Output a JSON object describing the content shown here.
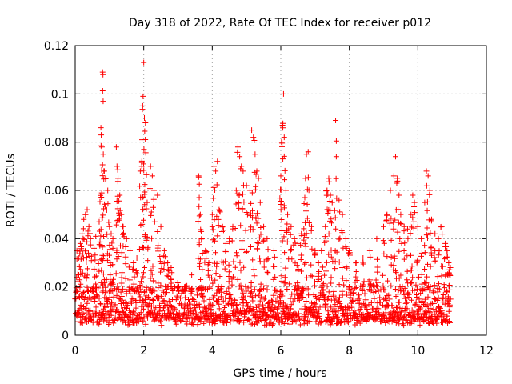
{
  "chart_data": {
    "type": "scatter",
    "title": "Day 318 of 2022, Rate Of TEC Index for receiver p012",
    "xlabel": "GPS time / hours",
    "ylabel": "ROTI / TECUs",
    "xlim": [
      0,
      12
    ],
    "ylim": [
      0,
      0.12
    ],
    "x_ticks": [
      0,
      2,
      4,
      6,
      8,
      10,
      12
    ],
    "x_tick_labels": [
      "0",
      "2",
      "4",
      "6",
      "8",
      "10",
      "12"
    ],
    "y_ticks": [
      0,
      0.02,
      0.04,
      0.06,
      0.08,
      0.1,
      0.12
    ],
    "y_tick_labels": [
      "0",
      "0.02",
      "0.04",
      "0.06",
      "0.08",
      "0.1",
      "0.12"
    ],
    "grid": true,
    "marker": "+",
    "color": "#ff0000",
    "x_range_data": [
      0,
      10.95
    ],
    "baseline_band": [
      0.004,
      0.02
    ],
    "series": [
      {
        "name": "ROTI",
        "points": [
          [
            0.05,
            0.035
          ],
          [
            0.1,
            0.032
          ],
          [
            0.15,
            0.038
          ],
          [
            0.2,
            0.042
          ],
          [
            0.25,
            0.048
          ],
          [
            0.3,
            0.05
          ],
          [
            0.35,
            0.052
          ],
          [
            0.4,
            0.045
          ],
          [
            0.45,
            0.04
          ],
          [
            0.55,
            0.036
          ],
          [
            0.6,
            0.041
          ],
          [
            0.7,
            0.047
          ],
          [
            0.75,
            0.086
          ],
          [
            0.76,
            0.083
          ],
          [
            0.78,
            0.078
          ],
          [
            0.8,
            0.109
          ],
          [
            0.81,
            0.108
          ],
          [
            0.82,
            0.075
          ],
          [
            0.85,
            0.068
          ],
          [
            0.9,
            0.065
          ],
          [
            0.95,
            0.06
          ],
          [
            1.0,
            0.045
          ],
          [
            1.05,
            0.042
          ],
          [
            1.1,
            0.04
          ],
          [
            1.2,
            0.078
          ],
          [
            1.22,
            0.07
          ],
          [
            1.25,
            0.065
          ],
          [
            1.3,
            0.058
          ],
          [
            1.35,
            0.05
          ],
          [
            1.4,
            0.045
          ],
          [
            1.5,
            0.04
          ],
          [
            1.6,
            0.035
          ],
          [
            1.7,
            0.03
          ],
          [
            1.8,
            0.032
          ],
          [
            1.9,
            0.068
          ],
          [
            1.95,
            0.081
          ],
          [
            1.97,
            0.095
          ],
          [
            1.98,
            0.099
          ],
          [
            2.0,
            0.113
          ],
          [
            2.02,
            0.09
          ],
          [
            2.05,
            0.088
          ],
          [
            2.1,
            0.055
          ],
          [
            2.2,
            0.07
          ],
          [
            2.25,
            0.066
          ],
          [
            2.3,
            0.06
          ],
          [
            2.4,
            0.058
          ],
          [
            2.5,
            0.045
          ],
          [
            2.6,
            0.035
          ],
          [
            2.7,
            0.03
          ],
          [
            2.8,
            0.028
          ],
          [
            3.0,
            0.022
          ],
          [
            3.2,
            0.02
          ],
          [
            3.4,
            0.025
          ],
          [
            3.6,
            0.066
          ],
          [
            3.62,
            0.057
          ],
          [
            3.65,
            0.05
          ],
          [
            3.7,
            0.04
          ],
          [
            3.8,
            0.035
          ],
          [
            3.9,
            0.03
          ],
          [
            4.0,
            0.05
          ],
          [
            4.05,
            0.07
          ],
          [
            4.1,
            0.068
          ],
          [
            4.15,
            0.072
          ],
          [
            4.2,
            0.052
          ],
          [
            4.3,
            0.045
          ],
          [
            4.4,
            0.038
          ],
          [
            4.5,
            0.04
          ],
          [
            4.6,
            0.045
          ],
          [
            4.7,
            0.06
          ],
          [
            4.75,
            0.078
          ],
          [
            4.8,
            0.074
          ],
          [
            4.85,
            0.07
          ],
          [
            4.9,
            0.068
          ],
          [
            5.0,
            0.062
          ],
          [
            5.1,
            0.06
          ],
          [
            5.15,
            0.085
          ],
          [
            5.2,
            0.082
          ],
          [
            5.25,
            0.075
          ],
          [
            5.3,
            0.068
          ],
          [
            5.35,
            0.065
          ],
          [
            5.4,
            0.055
          ],
          [
            5.5,
            0.045
          ],
          [
            5.6,
            0.04
          ],
          [
            5.8,
            0.035
          ],
          [
            6.0,
            0.066
          ],
          [
            6.02,
            0.08
          ],
          [
            6.05,
            0.087
          ],
          [
            6.08,
            0.1
          ],
          [
            6.1,
            0.082
          ],
          [
            6.15,
            0.06
          ],
          [
            6.2,
            0.05
          ],
          [
            6.3,
            0.045
          ],
          [
            6.4,
            0.04
          ],
          [
            6.5,
            0.038
          ],
          [
            6.6,
            0.042
          ],
          [
            6.7,
            0.057
          ],
          [
            6.72,
            0.065
          ],
          [
            6.75,
            0.075
          ],
          [
            6.8,
            0.076
          ],
          [
            6.9,
            0.045
          ],
          [
            7.0,
            0.035
          ],
          [
            7.1,
            0.03
          ],
          [
            7.2,
            0.035
          ],
          [
            7.3,
            0.045
          ],
          [
            7.35,
            0.06
          ],
          [
            7.4,
            0.065
          ],
          [
            7.45,
            0.058
          ],
          [
            7.5,
            0.055
          ],
          [
            7.6,
            0.089
          ],
          [
            7.62,
            0.074
          ],
          [
            7.7,
            0.056
          ],
          [
            7.8,
            0.05
          ],
          [
            7.9,
            0.04
          ],
          [
            8.0,
            0.035
          ],
          [
            8.2,
            0.03
          ],
          [
            8.4,
            0.032
          ],
          [
            8.6,
            0.035
          ],
          [
            8.8,
            0.04
          ],
          [
            9.0,
            0.045
          ],
          [
            9.1,
            0.05
          ],
          [
            9.2,
            0.06
          ],
          [
            9.3,
            0.066
          ],
          [
            9.35,
            0.074
          ],
          [
            9.4,
            0.065
          ],
          [
            9.45,
            0.058
          ],
          [
            9.5,
            0.05
          ],
          [
            9.6,
            0.045
          ],
          [
            9.7,
            0.044
          ],
          [
            9.8,
            0.05
          ],
          [
            9.85,
            0.058
          ],
          [
            9.9,
            0.055
          ],
          [
            10.0,
            0.045
          ],
          [
            10.1,
            0.04
          ],
          [
            10.2,
            0.055
          ],
          [
            10.25,
            0.068
          ],
          [
            10.3,
            0.066
          ],
          [
            10.35,
            0.06
          ],
          [
            10.4,
            0.048
          ],
          [
            10.5,
            0.042
          ],
          [
            10.6,
            0.04
          ],
          [
            10.7,
            0.045
          ],
          [
            10.8,
            0.038
          ],
          [
            10.85,
            0.035
          ],
          [
            10.9,
            0.03
          ],
          [
            10.95,
            0.028
          ]
        ]
      }
    ]
  }
}
